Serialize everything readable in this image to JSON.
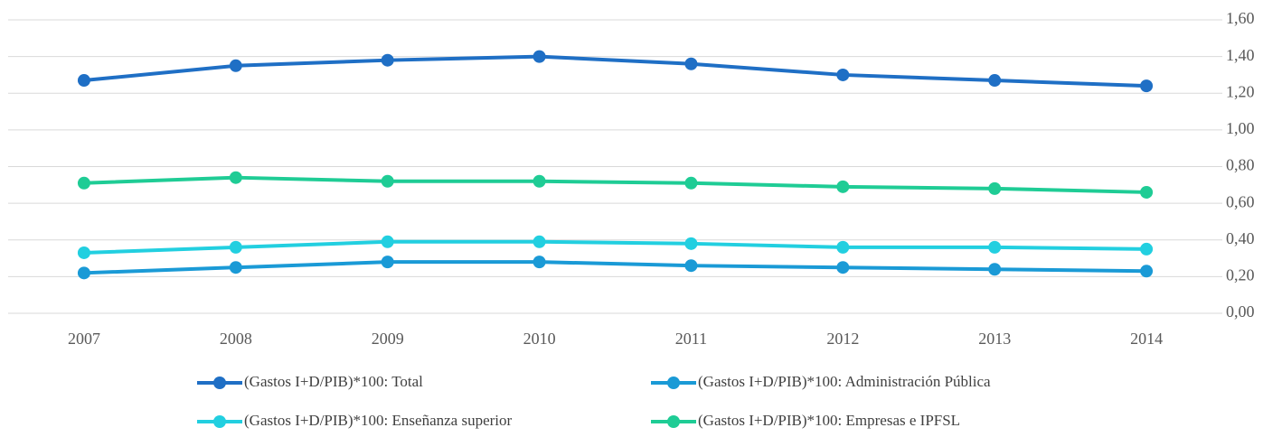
{
  "chart_data": {
    "type": "line",
    "categories": [
      "2007",
      "2008",
      "2009",
      "2010",
      "2011",
      "2012",
      "2013",
      "2014"
    ],
    "series": [
      {
        "name": "(Gastos I+D/PIB)*100: Total",
        "color": "#1f6fc5",
        "values": [
          1.27,
          1.35,
          1.38,
          1.4,
          1.36,
          1.3,
          1.27,
          1.24
        ]
      },
      {
        "name": "(Gastos I+D/PIB)*100: Administración Pública",
        "color": "#1a9ad6",
        "values": [
          0.22,
          0.25,
          0.28,
          0.28,
          0.26,
          0.25,
          0.24,
          0.23
        ]
      },
      {
        "name": "(Gastos I+D/PIB)*100: Enseñanza superior",
        "color": "#22cfe0",
        "values": [
          0.33,
          0.36,
          0.39,
          0.39,
          0.38,
          0.36,
          0.36,
          0.35
        ]
      },
      {
        "name": "(Gastos I+D/PIB)*100: Empresas e IPFSL",
        "color": "#1fcc95",
        "values": [
          0.71,
          0.74,
          0.72,
          0.72,
          0.71,
          0.69,
          0.68,
          0.66
        ]
      }
    ],
    "ylim": [
      0,
      1.6
    ],
    "yticks": [
      {
        "value": 0,
        "label": "0,00"
      },
      {
        "value": 0.2,
        "label": "0,20"
      },
      {
        "value": 0.4,
        "label": "0,40"
      },
      {
        "value": 0.6,
        "label": "0,60"
      },
      {
        "value": 0.8,
        "label": "0,80"
      },
      {
        "value": 1.0,
        "label": "1,00"
      },
      {
        "value": 1.2,
        "label": "1,20"
      },
      {
        "value": 1.4,
        "label": "1,40"
      },
      {
        "value": 1.6,
        "label": "1,60"
      }
    ],
    "grid": true,
    "y_axis_side": "right",
    "legend": "bottom"
  }
}
